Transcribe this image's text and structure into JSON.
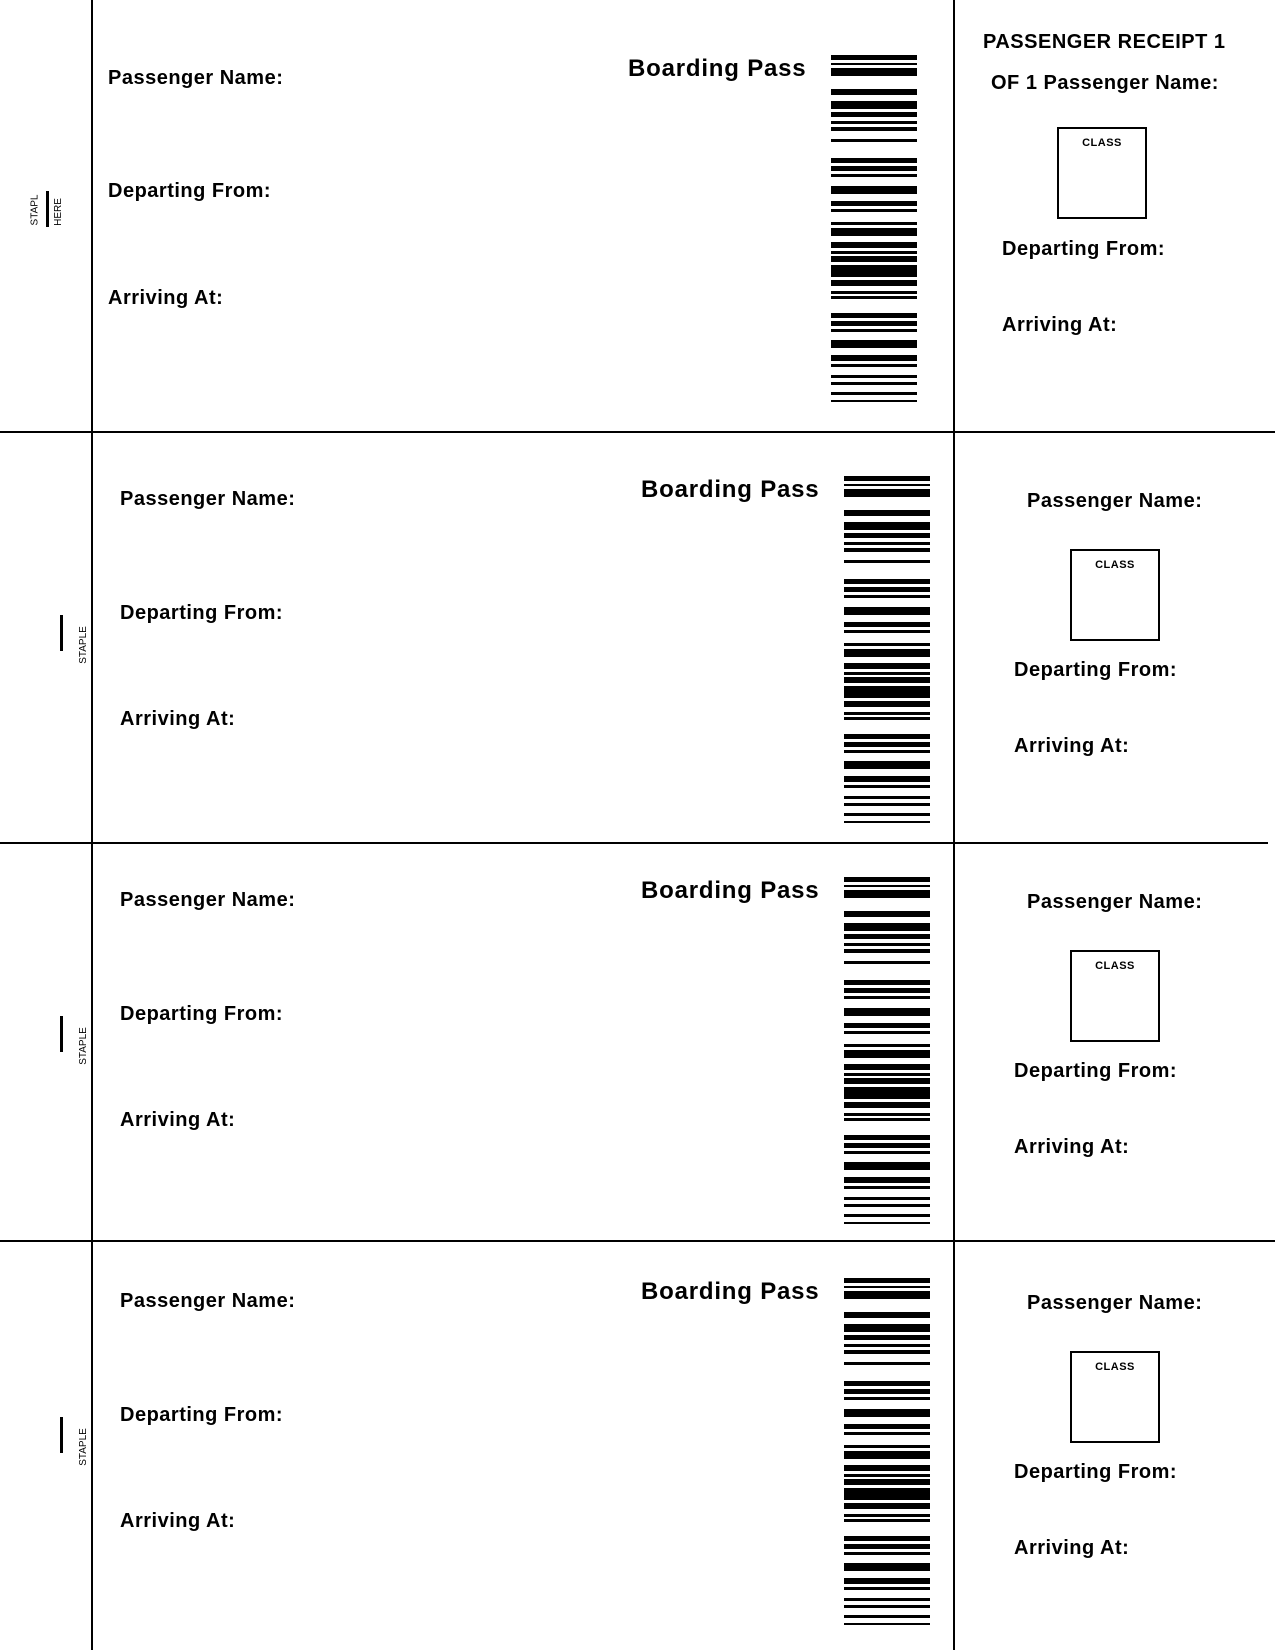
{
  "passes": [
    {
      "staple_text": [
        "STAPL",
        "HERE"
      ],
      "title": "Boarding Pass",
      "passenger_name_label": "Passenger Name:",
      "departing_label": "Departing From:",
      "arriving_label": "Arriving At:",
      "receipt": {
        "heading_line1": "PASSENGER RECEIPT 1",
        "heading_line2": "OF 1 Passenger Name:",
        "class_label": "CLASS",
        "departing_label": "Departing From:",
        "arriving_label": "Arriving At:"
      }
    },
    {
      "staple_text": [
        "STAPLE"
      ],
      "title": "Boarding Pass",
      "passenger_name_label": "Passenger Name:",
      "departing_label": "Departing From:",
      "arriving_label": "Arriving At:",
      "receipt": {
        "passenger_name_label": "Passenger Name:",
        "class_label": "CLASS",
        "departing_label": "Departing From:",
        "arriving_label": "Arriving At:"
      }
    },
    {
      "staple_text": [
        "STAPLE"
      ],
      "title": "Boarding Pass",
      "passenger_name_label": "Passenger Name:",
      "departing_label": "Departing From:",
      "arriving_label": "Arriving At:",
      "receipt": {
        "passenger_name_label": "Passenger Name:",
        "class_label": "CLASS",
        "departing_label": "Departing From:",
        "arriving_label": "Arriving At:"
      }
    },
    {
      "staple_text": [
        "STAPLE"
      ],
      "title": "Boarding Pass",
      "passenger_name_label": "Passenger Name:",
      "departing_label": "Departing From:",
      "arriving_label": "Arriving At:",
      "receipt": {
        "passenger_name_label": "Passenger Name:",
        "class_label": "CLASS",
        "departing_label": "Departing From:",
        "arriving_label": "Arriving At:"
      }
    }
  ]
}
